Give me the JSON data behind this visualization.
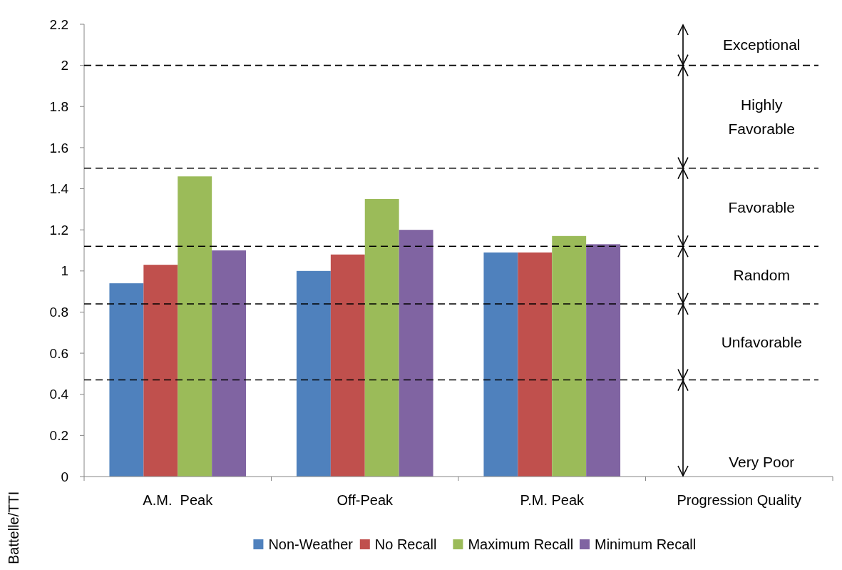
{
  "chart_data": {
    "type": "bar",
    "ylabel": "Battelle/TTI",
    "categories": [
      "A.M.  Peak",
      "Off-Peak",
      "P.M. Peak",
      "Progression Quality"
    ],
    "series": [
      {
        "name": "Non-Weather",
        "color": "#4f81bd",
        "values": [
          0.94,
          1.0,
          1.09,
          null
        ]
      },
      {
        "name": "No Recall",
        "color": "#c0504d",
        "values": [
          1.03,
          1.08,
          1.09,
          null
        ]
      },
      {
        "name": "Maximum Recall",
        "color": "#9bbb59",
        "values": [
          1.46,
          1.35,
          1.17,
          null
        ]
      },
      {
        "name": "Minimum Recall",
        "color": "#8064a2",
        "values": [
          1.1,
          1.2,
          1.13,
          null
        ]
      }
    ],
    "ylim": [
      0,
      2.2
    ],
    "yticks": [
      0,
      0.2,
      0.4,
      0.6,
      0.8,
      1,
      1.2,
      1.4,
      1.6,
      1.8,
      2,
      2.2
    ],
    "grid": false,
    "legend": "bottom",
    "ref_lines": [
      {
        "axis": "y",
        "value": 2.0,
        "color": "#000000",
        "line_style": "dashed"
      },
      {
        "axis": "y",
        "value": 1.5,
        "color": "#000000",
        "line_style": "dashed"
      },
      {
        "axis": "y",
        "value": 1.12,
        "color": "#000000",
        "line_style": "dashed"
      },
      {
        "axis": "y",
        "value": 0.84,
        "color": "#000000",
        "line_style": "dashed"
      },
      {
        "axis": "y",
        "value": 0.47,
        "color": "#000000",
        "line_style": "dashed"
      }
    ],
    "annotations": [
      "Exceptional",
      "Highly Favorable",
      "Favorable",
      "Random",
      "Unfavorable",
      "Very Poor"
    ]
  }
}
